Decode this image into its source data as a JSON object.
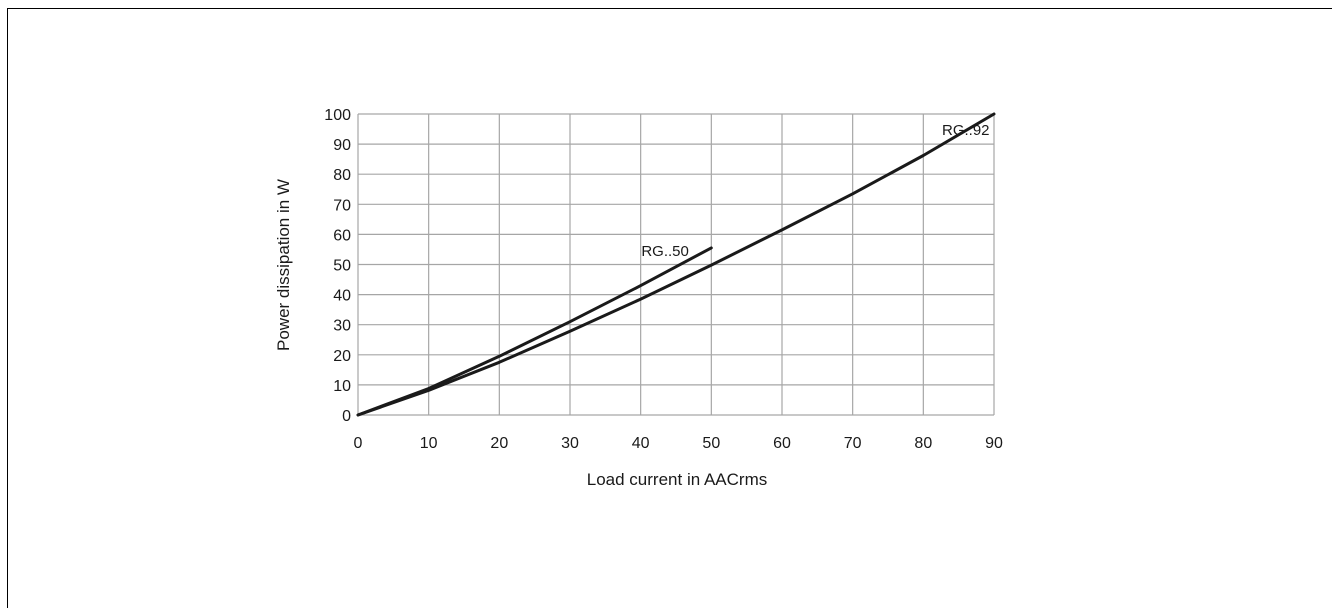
{
  "chart_data": {
    "type": "line",
    "xlabel": "Load current in AACrms",
    "ylabel": "Power dissipation in W",
    "xlim": [
      0,
      90
    ],
    "ylim": [
      0,
      100
    ],
    "xticks": [
      0,
      10,
      20,
      30,
      40,
      50,
      60,
      70,
      80,
      90
    ],
    "yticks": [
      0,
      10,
      20,
      30,
      40,
      50,
      60,
      70,
      80,
      90,
      100
    ],
    "grid": true,
    "line_color": "#1a1a1a",
    "grid_color": "#a6a6a6",
    "series": [
      {
        "name": "RG..92",
        "x": [
          0,
          10,
          20,
          30,
          40,
          50,
          60,
          70,
          80,
          90
        ],
        "y": [
          0,
          8.2,
          17.5,
          27.8,
          38.5,
          49.8,
          61.5,
          73.5,
          86.2,
          100
        ]
      },
      {
        "name": "RG..50",
        "x": [
          0,
          10,
          20,
          30,
          40,
          50
        ],
        "y": [
          0,
          8.8,
          19.5,
          31,
          43,
          55.5
        ]
      }
    ]
  }
}
